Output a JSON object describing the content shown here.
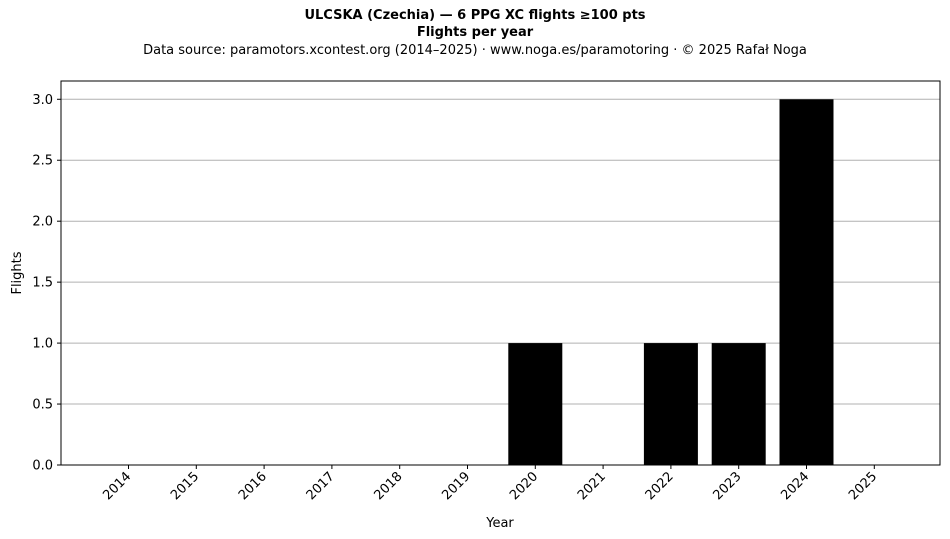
{
  "header": {
    "title": "ULCSKA (Czechia)  —  6 PPG XC flights ≥100 pts",
    "subtitle": "Flights per year",
    "source": "Data source: paramotors.xcontest.org (2014–2025)  ·  www.noga.es/paramotoring  ·  © 2025 Rafał Noga"
  },
  "chart_data": {
    "type": "bar",
    "title": "ULCSKA (Czechia)  —  6 PPG XC flights ≥100 pts",
    "subtitle": "Flights per year",
    "xlabel": "Year",
    "ylabel": "Flights",
    "categories": [
      "2014",
      "2015",
      "2016",
      "2017",
      "2018",
      "2019",
      "2020",
      "2021",
      "2022",
      "2023",
      "2024",
      "2025"
    ],
    "values": [
      0,
      0,
      0,
      0,
      0,
      0,
      1,
      0,
      1,
      1,
      3,
      0
    ],
    "ylim": [
      0,
      3.15
    ],
    "yticks": [
      "0.0",
      "0.5",
      "1.0",
      "1.5",
      "2.0",
      "2.5",
      "3.0"
    ],
    "grid": "horizontal",
    "bar_color": "#000000",
    "grid_color": "#b0b0b0"
  }
}
